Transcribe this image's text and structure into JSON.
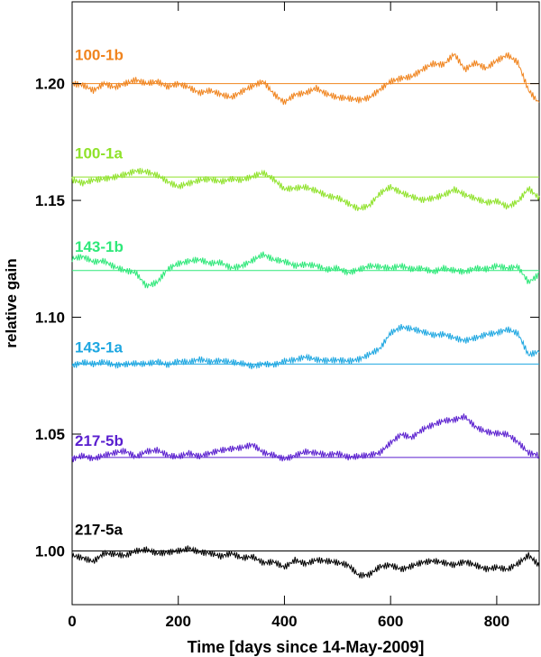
{
  "chart_data": {
    "type": "line",
    "title": "",
    "xlabel": "Time [days since 14-May-2009]",
    "ylabel": "relative gain",
    "xlim": [
      0,
      880
    ],
    "ylim": [
      0.977,
      1.235
    ],
    "x_ticks": [
      {
        "value": 0,
        "label": "0"
      },
      {
        "value": 200,
        "label": "200"
      },
      {
        "value": 400,
        "label": "400"
      },
      {
        "value": 600,
        "label": "600"
      },
      {
        "value": 800,
        "label": "800"
      }
    ],
    "y_ticks": [
      {
        "value": 1.0,
        "label": "1.00"
      },
      {
        "value": 1.05,
        "label": "1.05"
      },
      {
        "value": 1.1,
        "label": "1.10"
      },
      {
        "value": 1.15,
        "label": "1.15"
      },
      {
        "value": 1.2,
        "label": "1.20"
      }
    ],
    "grid": false,
    "series": [
      {
        "name": "100-1b",
        "color": "#f0841e",
        "baseline": 1.2,
        "label_y": 1.21,
        "label_color": "#f0841e",
        "x": [
          0,
          20,
          40,
          60,
          80,
          100,
          120,
          140,
          160,
          180,
          200,
          220,
          240,
          260,
          280,
          300,
          320,
          340,
          360,
          380,
          400,
          420,
          440,
          460,
          480,
          500,
          520,
          540,
          560,
          580,
          600,
          620,
          640,
          660,
          680,
          700,
          720,
          740,
          760,
          780,
          800,
          820,
          840,
          860,
          880
        ],
        "y": [
          1.2,
          1.2,
          1.198,
          1.201,
          1.199,
          1.2,
          1.201,
          1.199,
          1.2,
          1.198,
          1.2,
          1.199,
          1.197,
          1.198,
          1.196,
          1.194,
          1.196,
          1.198,
          1.2,
          1.195,
          1.192,
          1.196,
          1.197,
          1.199,
          1.196,
          1.194,
          1.193,
          1.192,
          1.193,
          1.197,
          1.201,
          1.203,
          1.204,
          1.207,
          1.209,
          1.208,
          1.212,
          1.205,
          1.208,
          1.206,
          1.21,
          1.213,
          1.21,
          1.198,
          1.192
        ]
      },
      {
        "name": "100-1a",
        "color": "#8fe22a",
        "baseline": 1.16,
        "label_y": 1.168,
        "label_color": "#8fe22a",
        "x": [
          0,
          20,
          40,
          60,
          80,
          100,
          120,
          140,
          160,
          180,
          200,
          220,
          240,
          260,
          280,
          300,
          320,
          340,
          360,
          380,
          400,
          420,
          440,
          460,
          480,
          500,
          520,
          540,
          560,
          580,
          600,
          620,
          640,
          660,
          680,
          700,
          720,
          740,
          760,
          780,
          800,
          820,
          840,
          860,
          880
        ],
        "y": [
          1.158,
          1.157,
          1.159,
          1.16,
          1.161,
          1.162,
          1.163,
          1.162,
          1.16,
          1.157,
          1.155,
          1.157,
          1.159,
          1.16,
          1.159,
          1.16,
          1.159,
          1.16,
          1.161,
          1.158,
          1.154,
          1.155,
          1.156,
          1.155,
          1.153,
          1.152,
          1.149,
          1.146,
          1.147,
          1.152,
          1.155,
          1.153,
          1.152,
          1.151,
          1.152,
          1.153,
          1.155,
          1.152,
          1.15,
          1.148,
          1.149,
          1.147,
          1.15,
          1.156,
          1.152
        ]
      },
      {
        "name": "143-1b",
        "color": "#2ee879",
        "baseline": 1.12,
        "label_y": 1.128,
        "label_color": "#2ee879",
        "x": [
          0,
          20,
          40,
          60,
          80,
          100,
          120,
          140,
          160,
          180,
          200,
          220,
          240,
          260,
          280,
          300,
          320,
          340,
          360,
          380,
          400,
          420,
          440,
          460,
          480,
          500,
          520,
          540,
          560,
          580,
          600,
          620,
          640,
          660,
          680,
          700,
          720,
          740,
          760,
          780,
          800,
          820,
          840,
          860,
          880
        ],
        "y": [
          1.124,
          1.125,
          1.123,
          1.124,
          1.122,
          1.121,
          1.12,
          1.114,
          1.115,
          1.12,
          1.122,
          1.123,
          1.124,
          1.123,
          1.124,
          1.122,
          1.123,
          1.125,
          1.127,
          1.124,
          1.123,
          1.121,
          1.122,
          1.122,
          1.121,
          1.122,
          1.12,
          1.121,
          1.122,
          1.121,
          1.12,
          1.121,
          1.12,
          1.121,
          1.12,
          1.122,
          1.121,
          1.12,
          1.121,
          1.12,
          1.121,
          1.12,
          1.121,
          1.115,
          1.119
        ]
      },
      {
        "name": "143-1a",
        "color": "#1ea7e1",
        "baseline": 1.08,
        "label_y": 1.085,
        "label_color": "#1ea7e1",
        "x": [
          0,
          20,
          40,
          60,
          80,
          100,
          120,
          140,
          160,
          180,
          200,
          220,
          240,
          260,
          280,
          300,
          320,
          340,
          360,
          380,
          400,
          420,
          440,
          460,
          480,
          500,
          520,
          540,
          560,
          580,
          600,
          620,
          640,
          660,
          680,
          700,
          720,
          740,
          760,
          780,
          800,
          820,
          840,
          860,
          880
        ],
        "y": [
          1.079,
          1.08,
          1.079,
          1.08,
          1.079,
          1.08,
          1.081,
          1.081,
          1.082,
          1.08,
          1.081,
          1.08,
          1.081,
          1.08,
          1.081,
          1.081,
          1.081,
          1.08,
          1.081,
          1.08,
          1.081,
          1.081,
          1.082,
          1.081,
          1.081,
          1.082,
          1.082,
          1.083,
          1.085,
          1.087,
          1.093,
          1.095,
          1.094,
          1.093,
          1.092,
          1.093,
          1.092,
          1.091,
          1.092,
          1.093,
          1.093,
          1.094,
          1.092,
          1.083,
          1.085
        ]
      },
      {
        "name": "217-5b",
        "color": "#5a1fcf",
        "baseline": 1.04,
        "label_y": 1.045,
        "label_color": "#5a1fcf",
        "x": [
          0,
          20,
          40,
          60,
          80,
          100,
          120,
          140,
          160,
          180,
          200,
          220,
          240,
          260,
          280,
          300,
          320,
          340,
          360,
          380,
          400,
          420,
          440,
          460,
          480,
          500,
          520,
          540,
          560,
          580,
          600,
          620,
          640,
          660,
          680,
          700,
          720,
          740,
          760,
          780,
          800,
          820,
          840,
          860,
          880
        ],
        "y": [
          1.04,
          1.041,
          1.039,
          1.04,
          1.041,
          1.042,
          1.04,
          1.043,
          1.044,
          1.042,
          1.041,
          1.042,
          1.04,
          1.041,
          1.042,
          1.043,
          1.044,
          1.046,
          1.043,
          1.042,
          1.04,
          1.041,
          1.042,
          1.041,
          1.04,
          1.041,
          1.04,
          1.041,
          1.042,
          1.043,
          1.047,
          1.05,
          1.048,
          1.051,
          1.053,
          1.055,
          1.056,
          1.058,
          1.054,
          1.052,
          1.051,
          1.05,
          1.046,
          1.041,
          1.04
        ]
      },
      {
        "name": "217-5a",
        "color": "#000000",
        "baseline": 1.0,
        "label_y": 1.007,
        "label_color": "#000000",
        "x": [
          0,
          20,
          40,
          60,
          80,
          100,
          120,
          140,
          160,
          180,
          200,
          220,
          240,
          260,
          280,
          300,
          320,
          340,
          360,
          380,
          400,
          420,
          440,
          460,
          480,
          500,
          520,
          540,
          560,
          580,
          600,
          620,
          640,
          660,
          680,
          700,
          720,
          740,
          760,
          780,
          800,
          820,
          840,
          860,
          880
        ],
        "y": [
          0.999,
          0.998,
          0.996,
          0.999,
          0.998,
          0.997,
          0.999,
          1.0,
          0.999,
          1.0,
          1.001,
          1.002,
          1.0,
          0.999,
          0.997,
          0.998,
          0.996,
          0.997,
          0.995,
          0.996,
          0.994,
          0.997,
          0.995,
          0.996,
          0.995,
          0.994,
          0.993,
          0.989,
          0.99,
          0.994,
          0.995,
          0.993,
          0.994,
          0.995,
          0.995,
          0.994,
          0.993,
          0.995,
          0.994,
          0.993,
          0.994,
          0.993,
          0.995,
          0.998,
          0.993
        ]
      }
    ]
  }
}
